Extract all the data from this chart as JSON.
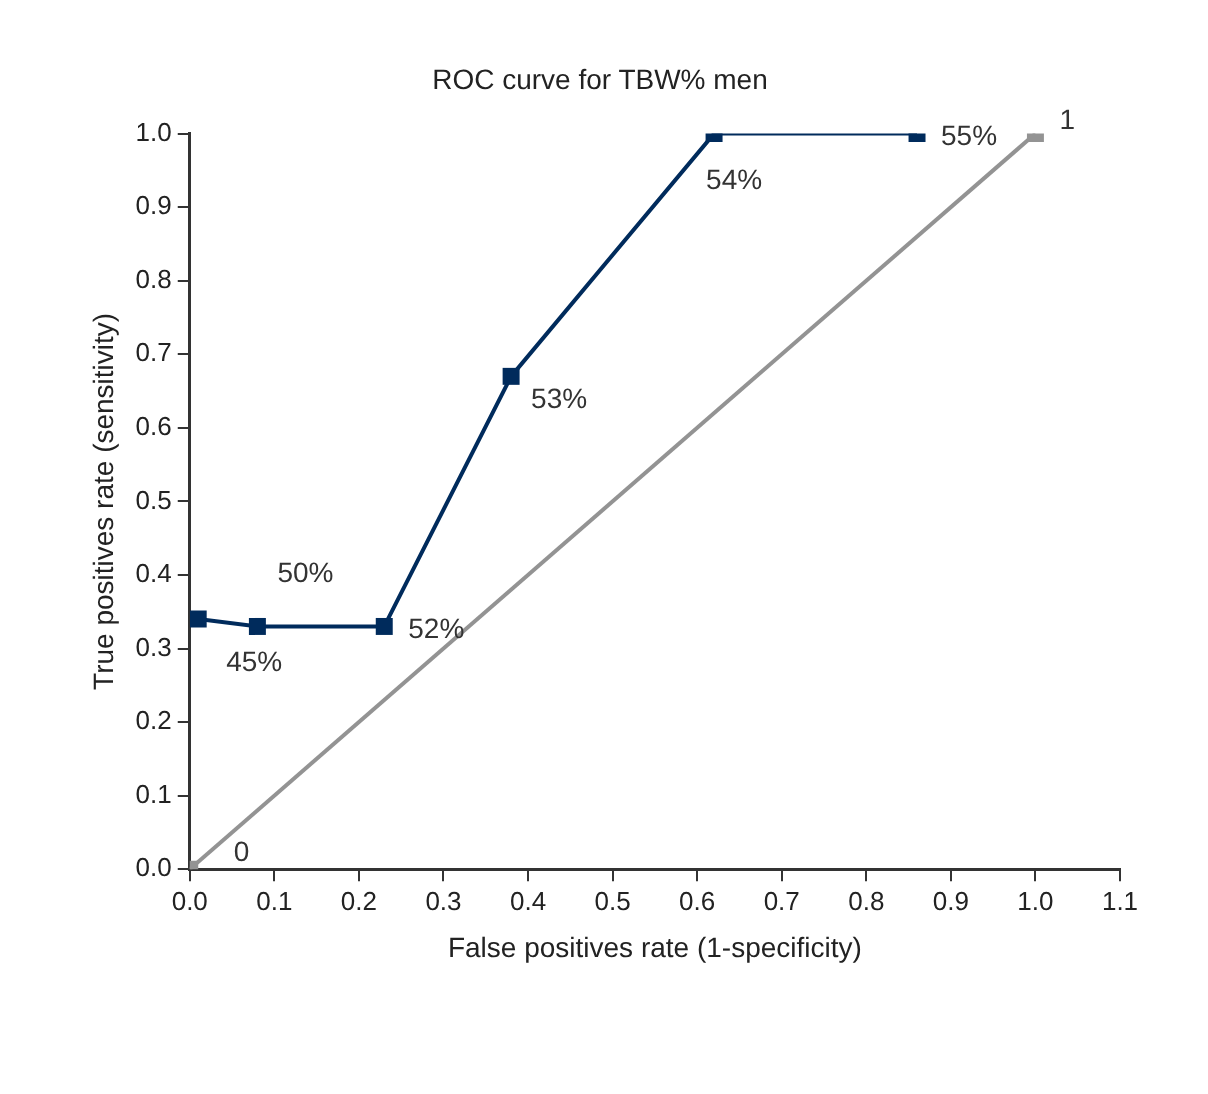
{
  "chart_data": {
    "type": "line",
    "title": "ROC curve for TBW% men",
    "xlabel": "False positives rate (1-specificity)",
    "ylabel": "True positives rate (sensitivity)",
    "series": [
      {
        "color": "#002b5c",
        "x": [
          0.01,
          0.08,
          0.23,
          0.38,
          0.62,
          0.86
        ],
        "values": [
          0.34,
          0.33,
          0.33,
          0.67,
          1.0,
          1.0
        ]
      },
      {
        "color": "#939393",
        "x": [
          0,
          1
        ],
        "values": [
          0,
          1
        ]
      }
    ],
    "annotations": [
      {
        "text": "45%",
        "x": 0.01,
        "y": 0.34
      },
      {
        "text": "50%",
        "x": 0.08,
        "y": 0.33
      },
      {
        "text": "52%",
        "x": 0.23,
        "y": 0.33
      },
      {
        "text": "53%",
        "x": 0.38,
        "y": 0.67
      },
      {
        "text": "54%",
        "x": 0.62,
        "y": 1.0
      },
      {
        "text": "55%",
        "x": 0.86,
        "y": 1.0
      },
      {
        "text": "0",
        "x": 0,
        "y": 0
      },
      {
        "text": "1",
        "x": 1,
        "y": 1
      }
    ],
    "xlim": [
      0,
      1.1
    ],
    "xticks": [
      {
        "value": 0,
        "label": "0.0"
      },
      0.1,
      0.2,
      0.3,
      0.4,
      0.5,
      0.6,
      0.7,
      0.8,
      0.9,
      {
        "value": 1,
        "label": "1.0"
      },
      1.1
    ],
    "ylim": [
      0,
      1
    ],
    "yticks": [
      {
        "value": 0,
        "label": "0.0"
      },
      0.1,
      0.2,
      0.3,
      0.4,
      0.5,
      0.6,
      0.7,
      0.8,
      0.9,
      {
        "value": 1,
        "label": "1.0"
      }
    ],
    "grid": false,
    "legend": false,
    "marker": "square",
    "line_style": "solid"
  }
}
